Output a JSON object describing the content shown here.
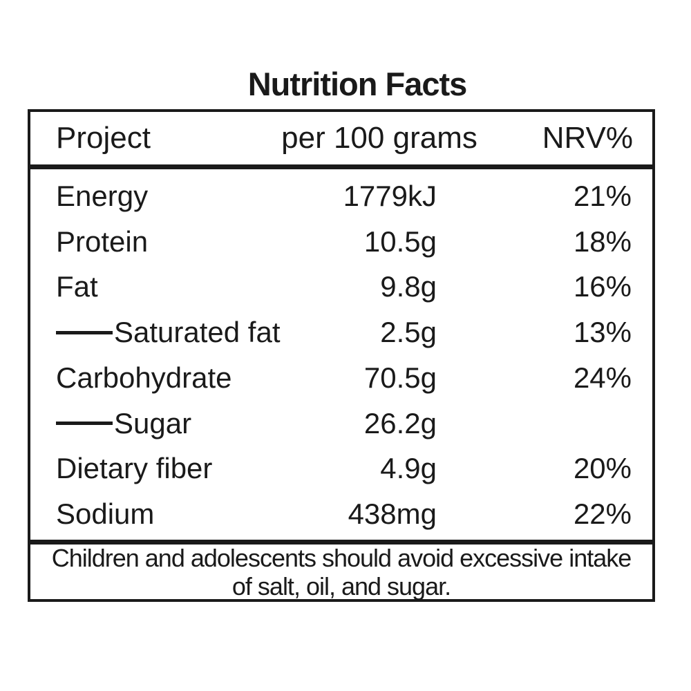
{
  "title": "Nutrition Facts",
  "table": {
    "headers": [
      "Project",
      "per 100 grams",
      "NRV%"
    ],
    "rows": [
      {
        "label": "Energy",
        "indent": false,
        "amount": "1779kJ",
        "nrv": "21%"
      },
      {
        "label": "Protein",
        "indent": false,
        "amount": "10.5g",
        "nrv": "18%"
      },
      {
        "label": "Fat",
        "indent": false,
        "amount": "9.8g",
        "nrv": "16%"
      },
      {
        "label": "Saturated fat",
        "indent": true,
        "amount": "2.5g",
        "nrv": "13%"
      },
      {
        "label": "Carbohydrate",
        "indent": false,
        "amount": "70.5g",
        "nrv": "24%"
      },
      {
        "label": "Sugar",
        "indent": true,
        "amount": "26.2g",
        "nrv": ""
      },
      {
        "label": "Dietary fiber",
        "indent": false,
        "amount": "4.9g",
        "nrv": "20%"
      },
      {
        "label": "Sodium",
        "indent": false,
        "amount": "438mg",
        "nrv": "22%"
      }
    ],
    "footnote": "Children and adolescents should avoid excessive intake of salt, oil, and sugar."
  },
  "colors": {
    "text": "#1a1a1a",
    "border": "#1a1a1a",
    "background": "#ffffff"
  }
}
